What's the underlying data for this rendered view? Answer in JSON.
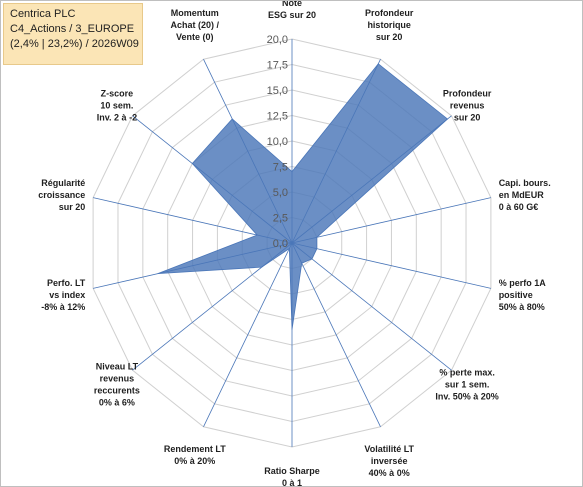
{
  "info_box": {
    "line1": "Centrica PLC",
    "line2": "C4_Actions / 3_EUROPE",
    "line3": "(2,4% | 23,2%) / 2026W09"
  },
  "colors": {
    "fill": "#4a76b8",
    "fill_opacity": "0.82",
    "grid": "#d0d0d0",
    "spoke": "#4a76b8",
    "info_bg": "#fbe5b6"
  },
  "chart_data": {
    "type": "radar",
    "range": [
      0,
      20
    ],
    "tick_step": 2.5,
    "tick_labels": [
      "0,0",
      "2,5",
      "5,0",
      "7,5",
      "10,0",
      "12,5",
      "15,0",
      "17,5",
      "20,0"
    ],
    "axes": [
      {
        "label": [
          "Note",
          "ESG sur 20"
        ],
        "value": 7
      },
      {
        "label": [
          "Profondeur",
          "historique",
          "sur 20"
        ],
        "value": 19.5
      },
      {
        "label": [
          "Profondeur",
          "revenus",
          "sur 20"
        ],
        "value": 19.5
      },
      {
        "label": [
          "Capi. bours.",
          "en MdEUR",
          "0 à 60 G€"
        ],
        "value": 2.5
      },
      {
        "label": [
          "% perfo 1A",
          "positive",
          "50% à 80%"
        ],
        "value": 2.5
      },
      {
        "label": [
          "% perte max.",
          "sur 1 sem.",
          "Inv. 50% à 20%"
        ],
        "value": 2.5
      },
      {
        "label": [
          "Volatilité LT",
          "inversée",
          "40% à 0%"
        ],
        "value": 2.2
      },
      {
        "label": [
          "Ratio Sharpe",
          "0 à 1"
        ],
        "value": 8.5
      },
      {
        "label": [
          "Rendement LT",
          "0% à 20%"
        ],
        "value": 0.6
      },
      {
        "label": [
          "Niveau LT",
          "revenus",
          "reccurents",
          "0% à 6%"
        ],
        "value": 3.8
      },
      {
        "label": [
          "Perfo. LT",
          "vs index",
          "-8% à 12%"
        ],
        "value": 13.5
      },
      {
        "label": [
          "Régularité",
          "croissance",
          "sur 20"
        ],
        "value": 3.5
      },
      {
        "label": [
          "Z-score",
          "10 sem.",
          "Inv. 2 à -2"
        ],
        "value": 12.5
      },
      {
        "label": [
          "Momentum",
          "Achat (20) /",
          "Vente (0)"
        ],
        "value": 13.5
      }
    ]
  }
}
